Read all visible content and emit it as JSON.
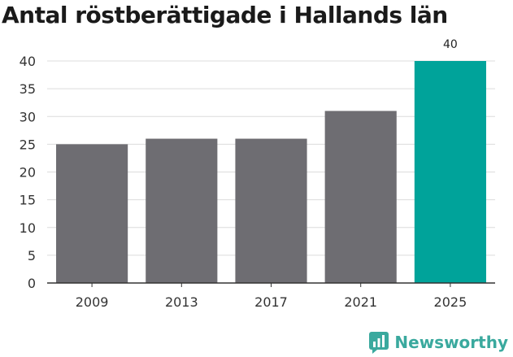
{
  "title": "Antal röstberättigade i Hallands län",
  "brand": {
    "name": "Newsworthy",
    "icon": "newsworthy-logo-icon",
    "color": "#3aa99e"
  },
  "colors": {
    "bar": "#6e6d72",
    "highlight": "#00a39a",
    "grid": "#dcdcdc",
    "axis": "#333333"
  },
  "chart_data": {
    "type": "bar",
    "categories": [
      "2009",
      "2013",
      "2017",
      "2021",
      "2025"
    ],
    "values": [
      25,
      26,
      26,
      31,
      40
    ],
    "highlight_index": 4,
    "data_labels": [
      {
        "index": 4,
        "text": "40"
      }
    ],
    "yticks": [
      0,
      5,
      10,
      15,
      20,
      25,
      30,
      35,
      40
    ],
    "ylim": [
      0,
      40
    ],
    "grid": true,
    "title": "Antal röstberättigade i Hallands län",
    "xlabel": "",
    "ylabel": ""
  }
}
